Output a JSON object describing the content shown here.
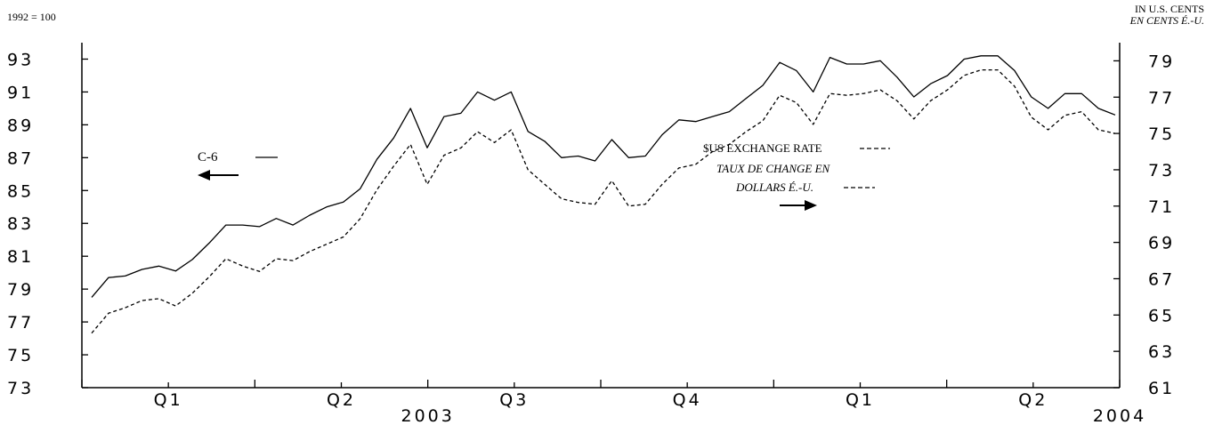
{
  "chart_data": {
    "type": "line",
    "left_axis": {
      "unit_label": "1992 = 100",
      "ylim": [
        73,
        94
      ],
      "ticks": [
        "73",
        "75",
        "77",
        "79",
        "81",
        "83",
        "85",
        "87",
        "89",
        "91",
        "93"
      ]
    },
    "right_axis": {
      "unit_label_en": "IN U.S. CENTS",
      "unit_label_fr": "EN CENTS É.-U.",
      "ylim": [
        61,
        80
      ],
      "ticks": [
        "61",
        "63",
        "65",
        "67",
        "69",
        "71",
        "73",
        "75",
        "77",
        "79"
      ]
    },
    "x_axis": {
      "quarter_labels": [
        "Q1",
        "Q2",
        "Q3",
        "Q4",
        "Q1",
        "Q2"
      ],
      "year_labels": [
        "2003",
        "2004"
      ],
      "n_points": 62
    },
    "legend": {
      "series1_label": "C-6",
      "series2_label_en": "$US EXCHANGE RATE",
      "series2_label_fr_1": "TAUX DE CHANGE EN",
      "series2_label_fr_2": "DOLLARS É.-U."
    },
    "series": [
      {
        "name": "C-6",
        "axis": "left",
        "style": "solid",
        "values": [
          78.5,
          79.7,
          79.8,
          80.2,
          80.4,
          80.1,
          80.8,
          81.8,
          82.9,
          82.9,
          82.8,
          83.3,
          82.9,
          83.5,
          84.0,
          84.3,
          85.1,
          86.9,
          88.2,
          90.0,
          87.6,
          89.5,
          89.7,
          91.0,
          90.5,
          91.0,
          88.6,
          88.0,
          87.0,
          87.1,
          86.8,
          88.1,
          87.0,
          87.1,
          88.4,
          89.3,
          89.2,
          89.5,
          89.8,
          90.6,
          91.4,
          92.8,
          92.3,
          91.0,
          93.1,
          92.7,
          92.7,
          92.9,
          91.9,
          90.7,
          91.5,
          92.0,
          93.0,
          93.2,
          93.2,
          92.3,
          90.7,
          90.0,
          90.9,
          90.9,
          90.0,
          89.6
        ]
      },
      {
        "name": "$US EXCHANGE RATE",
        "axis": "right",
        "style": "dashed",
        "values": [
          64.0,
          65.1,
          65.4,
          65.8,
          65.9,
          65.5,
          66.2,
          67.1,
          68.1,
          67.7,
          67.4,
          68.1,
          68.0,
          68.5,
          68.9,
          69.3,
          70.3,
          71.9,
          73.2,
          74.4,
          72.2,
          73.8,
          74.2,
          75.1,
          74.5,
          75.2,
          73.0,
          72.2,
          71.4,
          71.2,
          71.1,
          72.4,
          71.0,
          71.1,
          72.2,
          73.1,
          73.3,
          74.0,
          74.4,
          75.1,
          75.7,
          77.1,
          76.7,
          75.5,
          77.2,
          77.1,
          77.2,
          77.4,
          76.8,
          75.8,
          76.8,
          77.4,
          78.2,
          78.5,
          78.5,
          77.6,
          75.9,
          75.2,
          76.0,
          76.2,
          75.2,
          75.0
        ]
      }
    ]
  }
}
